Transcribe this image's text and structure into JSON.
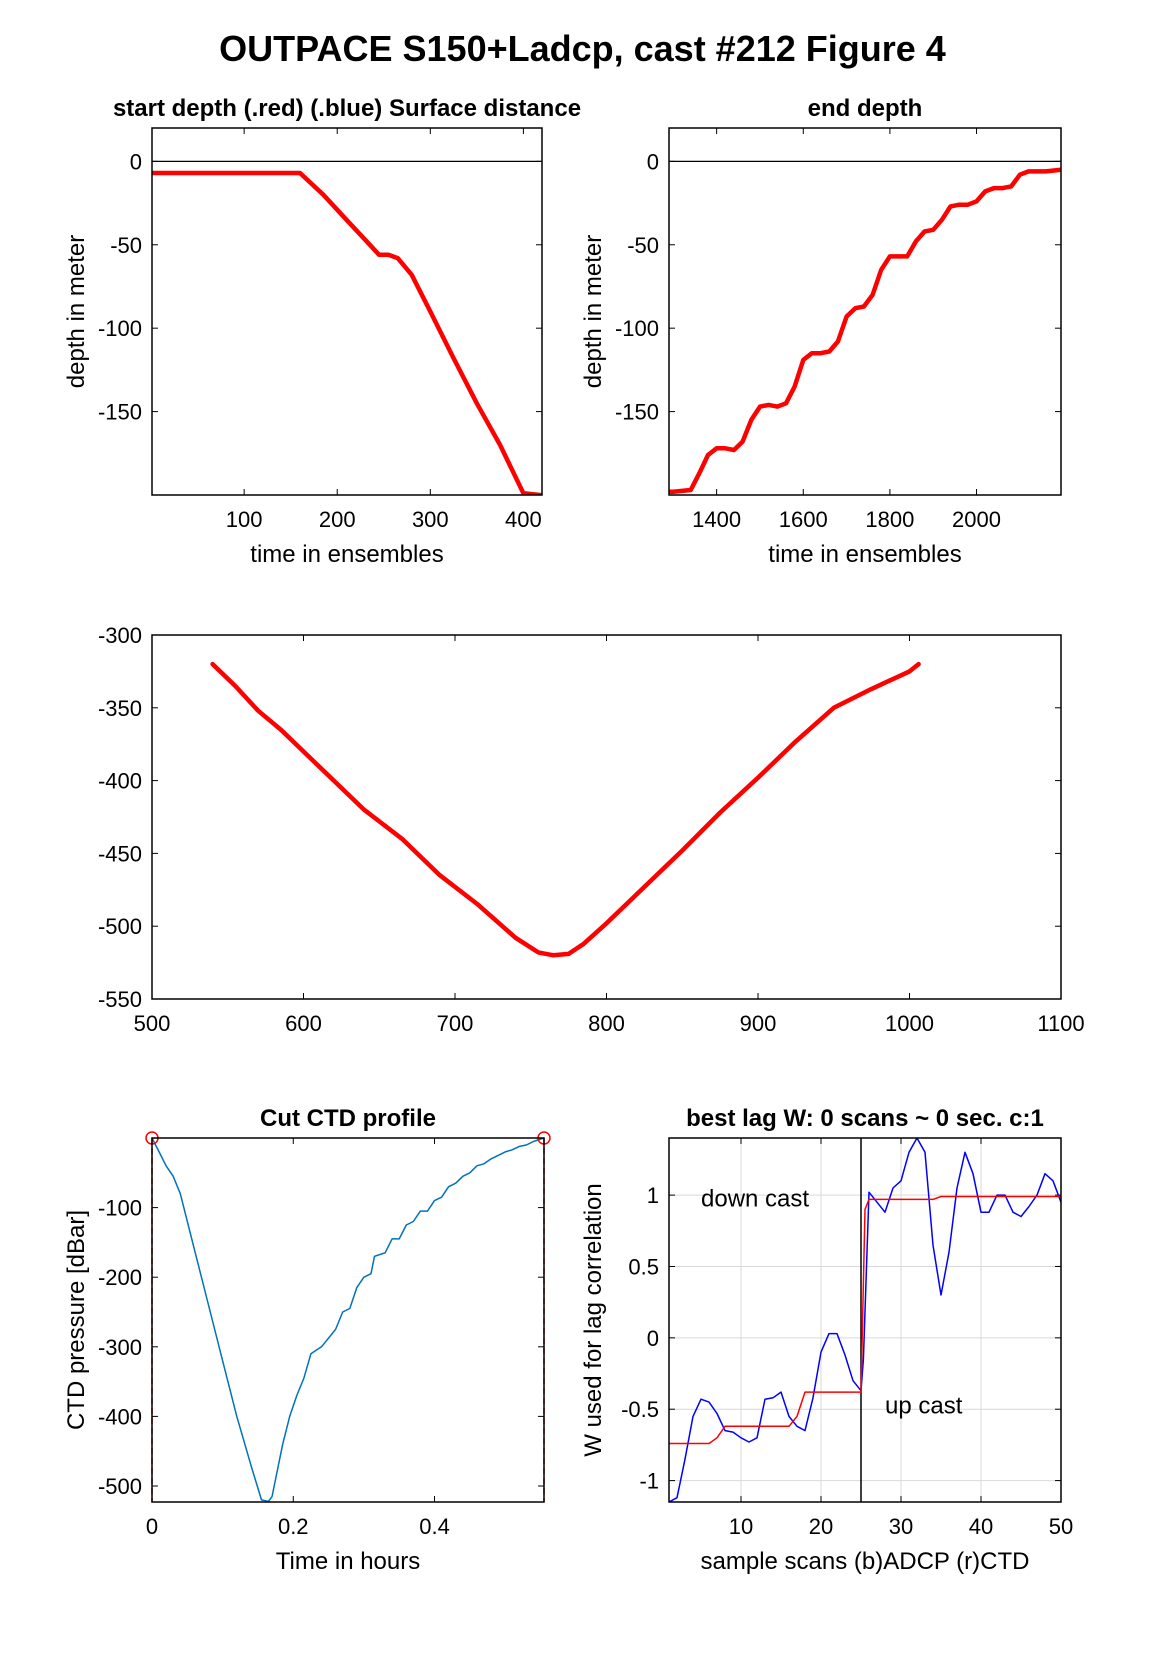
{
  "figure": {
    "title": "OUTPACE S150+Ladcp, cast #212    Figure 4"
  },
  "chart_data": [
    {
      "id": "start",
      "type": "line",
      "title": "start depth (.red) (.blue) Surface distance",
      "xlabel": "time in ensembles",
      "ylabel": "depth in meter",
      "xlim": [
        1,
        420
      ],
      "ylim": [
        -200,
        20
      ],
      "xticks": [
        100,
        200,
        300,
        400
      ],
      "yticks": [
        0,
        -50,
        -100,
        -150
      ],
      "hline": 0,
      "series": [
        {
          "color": "#ff0000",
          "x": [
            1,
            160,
            185,
            210,
            230,
            245,
            255,
            265,
            280,
            300,
            325,
            350,
            375,
            400,
            418
          ],
          "y": [
            -7,
            -7,
            -20,
            -35,
            -47,
            -56,
            -56,
            -58,
            -68,
            -90,
            -118,
            -145,
            -170,
            -199,
            -200
          ]
        }
      ]
    },
    {
      "id": "end",
      "type": "line",
      "title": "end depth",
      "xlabel": "time in ensembles",
      "ylabel": "depth in meter",
      "xlim": [
        1290,
        2195
      ],
      "ylim": [
        -200,
        20
      ],
      "xticks": [
        1400,
        1600,
        1800,
        2000
      ],
      "yticks": [
        0,
        -50,
        -100,
        -150
      ],
      "hline": 0,
      "series": [
        {
          "color": "#ff0000",
          "x": [
            1290,
            1300,
            1340,
            1360,
            1380,
            1400,
            1420,
            1440,
            1460,
            1480,
            1500,
            1520,
            1540,
            1560,
            1580,
            1600,
            1620,
            1640,
            1660,
            1680,
            1700,
            1720,
            1740,
            1760,
            1780,
            1800,
            1820,
            1840,
            1860,
            1880,
            1900,
            1920,
            1940,
            1960,
            1980,
            2000,
            2020,
            2040,
            2060,
            2080,
            2100,
            2120,
            2140,
            2160,
            2195
          ],
          "y": [
            -198,
            -198,
            -197,
            -187,
            -176,
            -172,
            -172,
            -173,
            -168,
            -155,
            -147,
            -146,
            -147,
            -145,
            -135,
            -119,
            -115,
            -115,
            -114,
            -108,
            -93,
            -88,
            -87,
            -80,
            -65,
            -57,
            -57,
            -57,
            -48,
            -42,
            -41,
            -35,
            -27,
            -26,
            -26,
            -24,
            -18,
            -16,
            -16,
            -15,
            -8,
            -6,
            -6,
            -6,
            -5
          ]
        }
      ]
    },
    {
      "id": "middle",
      "type": "line",
      "title": "",
      "xlabel": "",
      "ylabel": "",
      "xlim": [
        500,
        1100
      ],
      "ylim": [
        -550,
        -300
      ],
      "xticks": [
        500,
        600,
        700,
        800,
        900,
        1000,
        1100
      ],
      "yticks": [
        -300,
        -350,
        -400,
        -450,
        -500,
        -550
      ],
      "series": [
        {
          "color": "#ff0000",
          "x": [
            540,
            555,
            570,
            585,
            600,
            620,
            640,
            665,
            690,
            715,
            740,
            755,
            765,
            775,
            785,
            800,
            825,
            850,
            875,
            900,
            925,
            950,
            975,
            1000,
            1006
          ],
          "y": [
            -320,
            -335,
            -352,
            -365,
            -380,
            -400,
            -420,
            -440,
            -465,
            -485,
            -508,
            -518,
            -520,
            -519,
            -512,
            -498,
            -473,
            -448,
            -422,
            -398,
            -373,
            -350,
            -337,
            -325,
            -320
          ]
        }
      ]
    },
    {
      "id": "ctd",
      "type": "line",
      "title": "Cut CTD profile",
      "xlabel": "Time in hours",
      "ylabel": "CTD pressure [dBar]",
      "xlim": [
        0,
        0.555
      ],
      "ylim": [
        -523,
        0
      ],
      "xticks": [
        0,
        0.2,
        0.4
      ],
      "xtick_labels": [
        "0",
        "0.2",
        "0.4"
      ],
      "yticks": [
        -100,
        -200,
        -300,
        -400,
        -500
      ],
      "vlines": [
        0,
        0.555
      ],
      "markers": [
        {
          "x": 0,
          "y": 0
        },
        {
          "x": 0.555,
          "y": 0
        }
      ],
      "series": [
        {
          "color": "#0072bd",
          "x": [
            0,
            0.01,
            0.02,
            0.03,
            0.04,
            0.06,
            0.08,
            0.1,
            0.12,
            0.14,
            0.155,
            0.165,
            0.17,
            0.175,
            0.185,
            0.195,
            0.205,
            0.215,
            0.225,
            0.24,
            0.26,
            0.27,
            0.28,
            0.29,
            0.3,
            0.31,
            0.315,
            0.33,
            0.34,
            0.35,
            0.36,
            0.37,
            0.38,
            0.39,
            0.4,
            0.41,
            0.42,
            0.43,
            0.44,
            0.45,
            0.46,
            0.47,
            0.48,
            0.49,
            0.5,
            0.51,
            0.52,
            0.53,
            0.54,
            0.555
          ],
          "y": [
            0,
            -20,
            -40,
            -55,
            -80,
            -160,
            -240,
            -320,
            -400,
            -470,
            -520,
            -522,
            -515,
            -490,
            -440,
            -400,
            -370,
            -345,
            -310,
            -300,
            -275,
            -250,
            -245,
            -215,
            -200,
            -195,
            -170,
            -165,
            -145,
            -145,
            -125,
            -120,
            -105,
            -105,
            -90,
            -85,
            -70,
            -65,
            -55,
            -50,
            -40,
            -37,
            -30,
            -25,
            -20,
            -17,
            -12,
            -10,
            -5,
            0
          ]
        }
      ]
    },
    {
      "id": "lag",
      "type": "line",
      "title": "best lag W: 0 scans ~ 0 sec.  c:1",
      "xlabel": "sample scans (b)ADCP (r)CTD",
      "ylabel": "W used for lag correlation",
      "xlim": [
        1,
        50
      ],
      "ylim": [
        -1.15,
        1.4
      ],
      "xticks": [
        10,
        20,
        30,
        40,
        50
      ],
      "yticks": [
        1,
        0.5,
        0,
        -0.5,
        -1
      ],
      "ytick_labels": [
        "1",
        "0.5",
        "0",
        "-0.5",
        "-1"
      ],
      "grid": true,
      "vline": 25,
      "annotations": [
        {
          "text": "down cast",
          "x": 5,
          "y": 0.92
        },
        {
          "text": "up cast",
          "x": 28,
          "y": -0.53
        }
      ],
      "series": [
        {
          "name": "ADCP",
          "color": "#0000ff",
          "x": [
            1,
            2,
            3,
            4,
            5,
            6,
            7,
            8,
            9,
            10,
            11,
            12,
            13,
            14,
            15,
            16,
            17,
            18,
            19,
            20,
            21,
            22,
            23,
            24,
            25,
            25.3,
            26,
            27,
            28,
            29,
            30,
            31,
            32,
            33,
            34,
            35,
            36,
            37,
            38,
            39,
            40,
            41,
            42,
            43,
            44,
            45,
            46,
            47,
            48,
            49,
            50
          ],
          "y": [
            -1.15,
            -1.12,
            -0.85,
            -0.55,
            -0.43,
            -0.45,
            -0.53,
            -0.65,
            -0.66,
            -0.7,
            -0.73,
            -0.7,
            -0.43,
            -0.42,
            -0.38,
            -0.55,
            -0.62,
            -0.65,
            -0.42,
            -0.1,
            0.03,
            0.03,
            -0.12,
            -0.3,
            -0.37,
            -0.15,
            1.02,
            0.95,
            0.88,
            1.05,
            1.1,
            1.3,
            1.4,
            1.3,
            0.65,
            0.3,
            0.6,
            1.05,
            1.3,
            1.15,
            0.88,
            0.88,
            1.0,
            1.0,
            0.88,
            0.85,
            0.92,
            1.0,
            1.15,
            1.1,
            0.95
          ]
        },
        {
          "name": "CTD",
          "color": "#ff0000",
          "x": [
            1,
            6,
            7,
            8,
            16,
            17,
            18,
            25,
            25.5,
            26,
            27,
            34,
            35,
            50
          ],
          "y": [
            -0.74,
            -0.74,
            -0.7,
            -0.62,
            -0.62,
            -0.55,
            -0.38,
            -0.38,
            0.9,
            0.97,
            0.97,
            0.97,
            0.99,
            0.99
          ]
        }
      ]
    }
  ]
}
